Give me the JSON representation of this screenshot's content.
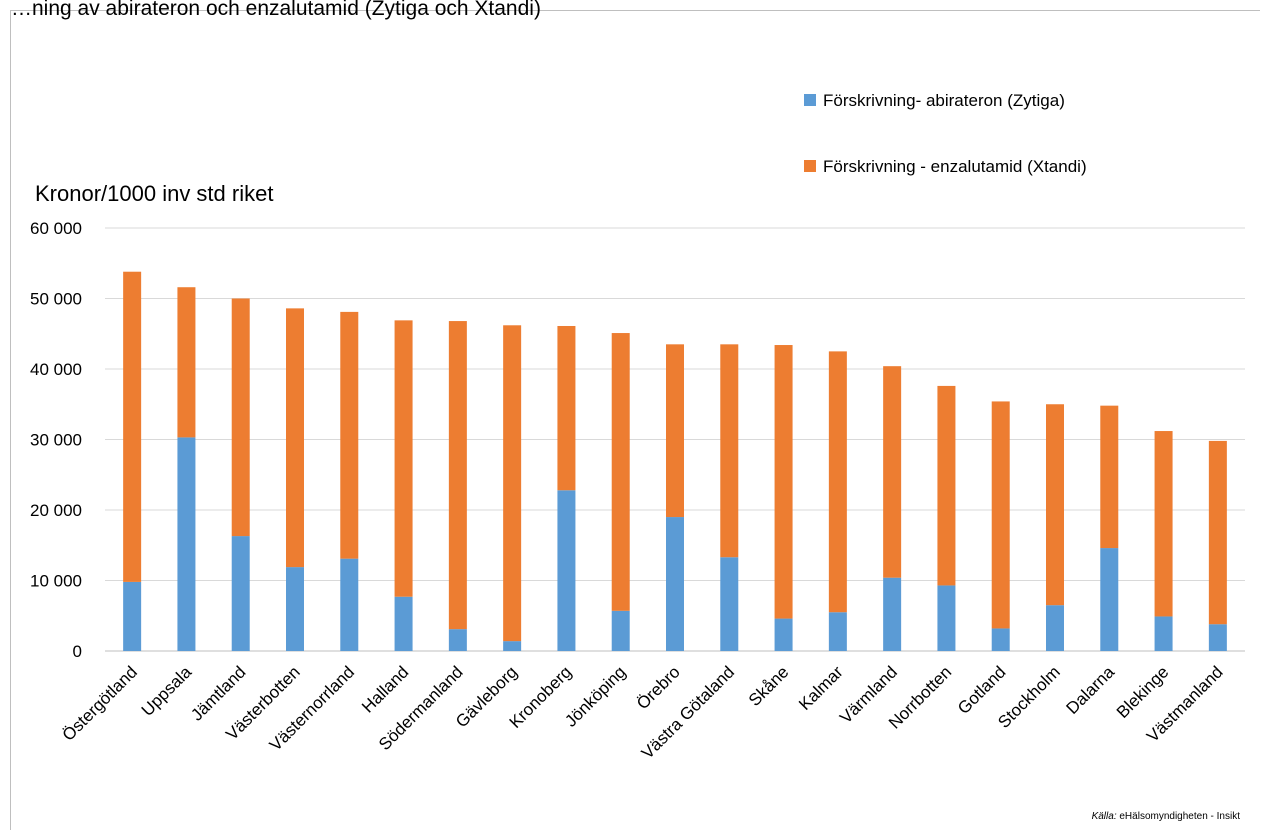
{
  "page_title": "…ning av abirateron och enzalutamid (Zytiga och Xtandi)",
  "source": {
    "prefix": "Källa:",
    "text": "eHälsomyndigheten - Insikt"
  },
  "colors": {
    "abirateron": "#5b9bd5",
    "enzalutamid": "#ed7d31",
    "grid": "#d9d9d9"
  },
  "chart_data": {
    "type": "bar",
    "stacked": true,
    "ylabel": "Kronor/1000 inv std riket",
    "xlabel": "",
    "ylim": [
      0,
      60000
    ],
    "yticks": [
      0,
      10000,
      20000,
      30000,
      40000,
      50000,
      60000
    ],
    "ytick_labels": [
      "0",
      "10 000",
      "20 000",
      "30 000",
      "40 000",
      "50 000",
      "60 000"
    ],
    "grid": true,
    "legend_position": "top-right",
    "categories": [
      "Östergötland",
      "Uppsala",
      "Jämtland",
      "Västerbotten",
      "Västernorrland",
      "Halland",
      "Södermanland",
      "Gävleborg",
      "Kronoberg",
      "Jönköping",
      "Örebro",
      "Västra Götaland",
      "Skåne",
      "Kalmar",
      "Värmland",
      "Norrbotten",
      "Gotland",
      "Stockholm",
      "Dalarna",
      "Blekinge",
      "Västmanland"
    ],
    "series": [
      {
        "name": "Förskrivning- abirateron (Zytiga)",
        "values": [
          9800,
          30300,
          16300,
          11900,
          13100,
          7700,
          3100,
          1400,
          22800,
          5700,
          19000,
          13300,
          4600,
          5500,
          10400,
          9300,
          3200,
          6500,
          14600,
          4900,
          3800
        ]
      },
      {
        "name": "Förskrivning - enzalutamid (Xtandi)",
        "values": [
          44000,
          21300,
          33700,
          36700,
          35000,
          39200,
          43700,
          44800,
          23300,
          39400,
          24500,
          30200,
          38800,
          37000,
          30000,
          28300,
          32200,
          28500,
          20200,
          26300,
          26000
        ]
      }
    ]
  }
}
